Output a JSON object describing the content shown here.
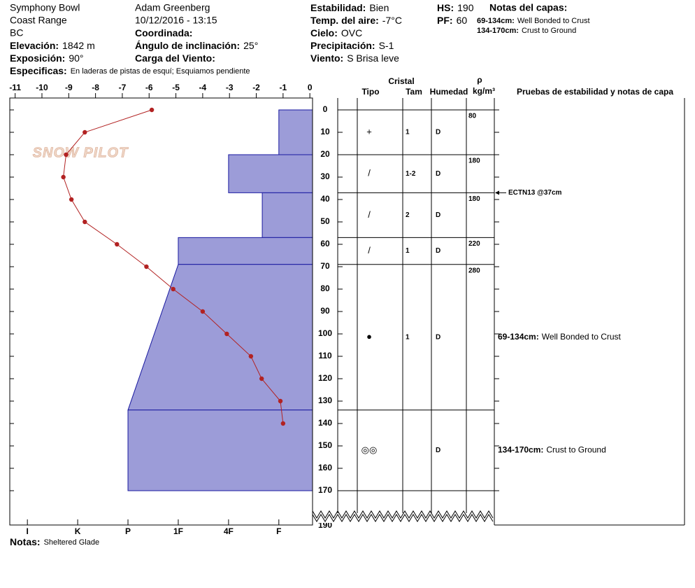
{
  "header": {
    "columns": [
      [
        "Symphony Bowl",
        "Coast Range",
        "BC",
        {
          "label": "Elevación:",
          "value": "1842 m"
        },
        {
          "label": "Exposición:",
          "value": "90°"
        }
      ],
      [
        "Adam Greenberg",
        "10/12/2016 - 13:15",
        {
          "label": "Coordinada:"
        },
        {
          "label": "Ángulo de inclinación:",
          "value": "25°"
        },
        {
          "label": "Carga del Viento:"
        }
      ],
      [
        {
          "label": "Estabilidad:",
          "value": "Bien"
        },
        {
          "label": "Temp. del aire:",
          "value": "-7°C"
        },
        {
          "label": "Cielo:",
          "value": "OVC"
        },
        {
          "label": "Precipitación:",
          "value": "S-1"
        },
        {
          "label": "Viento:",
          "value": "S Brisa leve"
        }
      ],
      [
        {
          "label": "HS:",
          "value": 190
        },
        {
          "label": "PF:",
          "value": 60
        }
      ]
    ],
    "specifics": {
      "label": "Especificas:",
      "value": "En laderas de pistas de esquí; Esquiamos pendiente"
    },
    "layer_notes_title": "Notas del capas:",
    "layer_notes": [
      {
        "range": "69-134cm:",
        "text": "Well Bonded to Crust"
      },
      {
        "range": "134-170cm:",
        "text": "Crust to Ground"
      }
    ]
  },
  "chart_data": {
    "type": "snow-profile",
    "logo": "SNOW PILOT",
    "temp_axis": {
      "lim": [
        -11.2,
        0.1
      ],
      "ticks": [
        -11,
        -10,
        -9,
        -8,
        -7,
        -6,
        -5,
        -4,
        -3,
        -2,
        -1,
        0
      ]
    },
    "depth_axis": {
      "lim": [
        0,
        170
      ],
      "ticks": [
        0,
        10,
        20,
        30,
        40,
        50,
        60,
        70,
        80,
        90,
        100,
        110,
        120,
        130,
        140,
        150,
        160,
        170
      ],
      "break_tick": 190
    },
    "hardness_axis": {
      "lim": [
        0.33,
        6.35
      ],
      "ticks": [
        {
          "value": 6,
          "label": "I"
        },
        {
          "value": 5,
          "label": "K"
        },
        {
          "value": 4,
          "label": "P"
        },
        {
          "value": 3,
          "label": "1F"
        },
        {
          "value": 2,
          "label": "4F"
        },
        {
          "value": 1,
          "label": "F"
        }
      ]
    },
    "temperature": {
      "color": "#b22222",
      "depths": [
        0,
        10,
        20,
        30,
        40,
        50,
        60,
        70,
        80,
        90,
        100,
        110,
        120,
        130,
        140
      ],
      "values": [
        -5.9,
        -8.4,
        -9.1,
        -9.2,
        -8.9,
        -8.4,
        -7.2,
        -6.1,
        -5.1,
        -4.0,
        -3.1,
        -2.2,
        -1.8,
        -1.1,
        -1.0
      ]
    },
    "layer_color": "#9c9cd8",
    "layers": [
      {
        "top": 0,
        "bottom": 20,
        "hardness": 1,
        "grain": "+",
        "size": "1",
        "moisture": "D",
        "density": 80
      },
      {
        "top": 20,
        "bottom": 37,
        "hardness": 2,
        "grain": "/",
        "size": "1-2",
        "moisture": "D",
        "density": 180
      },
      {
        "top": 37,
        "bottom": 57,
        "hardness": 1.33,
        "grain": "/",
        "size": "2",
        "moisture": "D",
        "density": 180
      },
      {
        "top": 57,
        "bottom": 69,
        "hardness": 3,
        "grain": "/",
        "size": "1",
        "moisture": "D",
        "density": 220
      },
      {
        "top": 69,
        "bottom": 134,
        "hardness": 3,
        "hardness_bottom": 4,
        "grain": "●",
        "size": "1",
        "moisture": "D",
        "density": 280
      },
      {
        "top": 134,
        "bottom": 170,
        "hardness": 4,
        "grain": "◎◎",
        "moisture": "D"
      }
    ],
    "table_headers": {
      "cristal": "Cristal",
      "tipo": "Tipo",
      "tam": "Tam",
      "humedad": "Humedad",
      "rho": "ρ",
      "density_unit": "kg/m³",
      "tests": "Pruebas de estabilidad y notas de capa"
    },
    "tests": [
      {
        "label": "ECTN13 @37cm",
        "depth": 37
      }
    ],
    "layer_notes": [
      {
        "range": "69-134cm:",
        "text": "Well Bonded to Crust",
        "top": 69,
        "bottom": 134
      },
      {
        "range": "134-170cm:",
        "text": "Crust to Ground",
        "top": 134,
        "bottom": 170
      }
    ]
  },
  "notes": {
    "label": "Notas:",
    "value": "Sheltered Glade"
  }
}
